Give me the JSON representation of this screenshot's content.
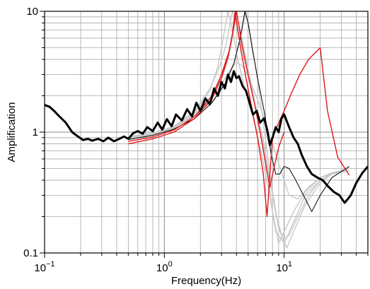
{
  "chart_data": {
    "type": "line",
    "title": "",
    "xlabel": "Frequency(Hz)",
    "ylabel": "Amplification",
    "xscale": "log",
    "yscale": "log",
    "xlim": [
      0.1,
      50
    ],
    "ylim": [
      0.1,
      10
    ],
    "grid": true,
    "x_ticks": [
      {
        "value": 0.1,
        "base": "10",
        "exp": "−1"
      },
      {
        "value": 1,
        "base": "10",
        "exp": "0"
      },
      {
        "value": 10,
        "base": "10",
        "exp": "1"
      }
    ],
    "y_ticks": [
      {
        "value": 0.1,
        "label": "0.1"
      },
      {
        "value": 1,
        "label": "1"
      },
      {
        "value": 10,
        "label": "10"
      }
    ],
    "colors": {
      "observed": "#000000",
      "gray": "#c8c8c8",
      "red": "#e01818",
      "black_model": "#000000"
    },
    "series": [
      {
        "style": "observed",
        "x": [
          0.1,
          0.11,
          0.12,
          0.13,
          0.15,
          0.17,
          0.19,
          0.21,
          0.23,
          0.25,
          0.28,
          0.31,
          0.34,
          0.38,
          0.42,
          0.46,
          0.5,
          0.55,
          0.6,
          0.66,
          0.72,
          0.8,
          0.88,
          0.96,
          1.05,
          1.15,
          1.25,
          1.4,
          1.55,
          1.7,
          1.85,
          2.0,
          2.2,
          2.4,
          2.6,
          2.8,
          3.0,
          3.2,
          3.4,
          3.6,
          3.8,
          4.0,
          4.2,
          4.5,
          4.8,
          5.1,
          5.5,
          5.9,
          6.3,
          6.8,
          7.2,
          7.6,
          8.0,
          8.5,
          9.0,
          9.5,
          10.0,
          11.0,
          12.0,
          13.0,
          14.0,
          15.5,
          17.0,
          19.0,
          21.0,
          23.0,
          26.0,
          29.0,
          32.0,
          36.0,
          40.0,
          45.0,
          50.0
        ],
        "y": [
          1.68,
          1.62,
          1.5,
          1.38,
          1.2,
          1.0,
          0.92,
          0.86,
          0.88,
          0.85,
          0.88,
          0.84,
          0.9,
          0.84,
          0.88,
          0.92,
          0.88,
          0.98,
          1.02,
          0.97,
          1.1,
          1.02,
          1.2,
          1.05,
          1.28,
          1.12,
          1.4,
          1.25,
          1.55,
          1.35,
          1.75,
          1.5,
          1.9,
          1.7,
          2.3,
          2.0,
          2.6,
          2.3,
          3.0,
          2.6,
          3.2,
          2.8,
          2.9,
          2.4,
          2.2,
          1.8,
          1.4,
          1.5,
          1.2,
          1.3,
          1.05,
          0.78,
          0.9,
          1.1,
          1.0,
          1.3,
          1.4,
          1.1,
          0.9,
          0.8,
          0.65,
          0.52,
          0.45,
          0.42,
          0.4,
          0.36,
          0.32,
          0.3,
          0.26,
          0.3,
          0.38,
          0.46,
          0.52
        ]
      },
      {
        "style": "gray",
        "x": [
          0.5,
          0.8,
          1.2,
          1.8,
          2.5,
          3.0,
          3.4,
          3.7,
          4.0,
          4.3,
          4.7,
          5.2,
          5.8,
          6.5,
          7.2,
          8.0,
          9.0,
          10.0,
          12.0,
          15.0,
          20.0,
          25.0,
          35.0
        ],
        "y": [
          0.88,
          0.95,
          1.1,
          1.4,
          2.0,
          2.8,
          4.0,
          6.0,
          9.5,
          7.0,
          4.5,
          2.8,
          1.6,
          0.95,
          0.5,
          0.22,
          0.12,
          0.15,
          0.22,
          0.32,
          0.42,
          0.46,
          0.48
        ]
      },
      {
        "style": "gray",
        "x": [
          0.5,
          0.8,
          1.2,
          1.8,
          2.4,
          2.8,
          3.1,
          3.4,
          3.7,
          4.1,
          4.6,
          5.2,
          5.9,
          6.6,
          7.5,
          8.5,
          10.0,
          12.0,
          15.0,
          20.0,
          25.0,
          35.0
        ],
        "y": [
          0.9,
          0.97,
          1.12,
          1.45,
          2.2,
          3.5,
          6.0,
          10.0,
          7.0,
          4.0,
          2.5,
          1.6,
          1.0,
          0.6,
          0.32,
          0.15,
          0.12,
          0.18,
          0.3,
          0.4,
          0.45,
          0.48
        ]
      },
      {
        "style": "gray",
        "x": [
          0.5,
          0.8,
          1.2,
          1.8,
          2.5,
          3.2,
          3.8,
          4.3,
          4.8,
          5.3,
          5.9,
          6.5,
          7.2,
          8.0,
          9.0,
          10.5,
          12.0,
          15.0,
          20.0,
          25.0,
          35.0
        ],
        "y": [
          0.92,
          0.98,
          1.1,
          1.35,
          1.8,
          2.5,
          3.6,
          6.0,
          10.0,
          6.0,
          3.0,
          1.5,
          0.7,
          0.32,
          0.16,
          0.11,
          0.15,
          0.25,
          0.38,
          0.45,
          0.5
        ]
      },
      {
        "style": "gray",
        "x": [
          0.5,
          0.8,
          1.2,
          1.8,
          2.5,
          3.0,
          3.5,
          4.0,
          4.5,
          5.0,
          5.6,
          6.2,
          7.0,
          8.0,
          9.0,
          10.0,
          11.0,
          13.0,
          16.0,
          20.0,
          25.0,
          35.0
        ],
        "y": [
          0.87,
          0.94,
          1.08,
          1.38,
          1.9,
          2.5,
          3.2,
          3.8,
          3.5,
          2.9,
          2.2,
          1.7,
          1.2,
          0.8,
          0.55,
          0.4,
          0.3,
          0.28,
          0.35,
          0.42,
          0.46,
          0.5
        ]
      },
      {
        "style": "gray",
        "x": [
          0.5,
          0.8,
          1.2,
          1.8,
          2.4,
          2.9,
          3.3,
          3.7,
          4.2,
          4.7,
          5.3,
          6.0,
          6.8,
          7.6,
          8.6,
          9.8,
          11.0,
          13.0,
          16.0,
          20.0,
          25.0,
          35.0
        ],
        "y": [
          0.89,
          0.96,
          1.12,
          1.5,
          2.3,
          3.5,
          5.5,
          10.0,
          6.5,
          3.8,
          2.3,
          1.4,
          0.8,
          0.4,
          0.2,
          0.13,
          0.14,
          0.2,
          0.3,
          0.4,
          0.46,
          0.5
        ]
      },
      {
        "style": "red",
        "x": [
          0.5,
          0.8,
          1.2,
          1.8,
          2.5,
          3.0,
          3.4,
          3.7,
          3.9,
          4.1,
          4.4,
          4.8,
          5.3,
          6.0,
          6.7,
          7.2,
          7.6,
          8.0,
          8.5,
          9.2,
          10.0,
          11.5,
          13.5,
          16.0,
          20.0,
          23.0,
          28.0,
          35.0
        ],
        "y": [
          0.8,
          0.88,
          1.0,
          1.3,
          1.9,
          2.8,
          4.2,
          6.5,
          10.0,
          7.0,
          4.5,
          2.8,
          1.7,
          0.9,
          0.45,
          0.2,
          0.45,
          0.9,
          1.05,
          1.25,
          1.5,
          2.1,
          3.0,
          4.0,
          5.0,
          1.5,
          0.62,
          0.44
        ]
      },
      {
        "style": "red",
        "x": [
          0.5,
          0.8,
          1.2,
          1.8,
          2.5,
          3.0,
          3.5,
          3.8,
          4.0,
          4.2,
          4.5,
          5.0,
          5.6,
          6.3,
          7.0,
          7.6,
          8.2,
          9.0,
          10.0
        ],
        "y": [
          0.84,
          0.91,
          1.04,
          1.35,
          2.0,
          3.0,
          4.8,
          7.5,
          10.0,
          7.5,
          5.0,
          3.0,
          1.8,
          1.0,
          0.55,
          0.35,
          0.5,
          0.75,
          1.0
        ]
      },
      {
        "style": "black_model",
        "x": [
          0.5,
          0.8,
          1.2,
          1.8,
          2.5,
          3.2,
          3.8,
          4.3,
          4.7,
          5.0,
          5.4,
          6.0,
          6.8,
          7.3,
          7.8,
          8.5,
          9.2,
          10.0,
          11.0,
          12.5,
          14.5,
          17.0,
          20.0,
          25.0,
          35.0
        ],
        "y": [
          0.87,
          0.94,
          1.06,
          1.3,
          1.75,
          2.5,
          3.7,
          6.0,
          10.0,
          8.0,
          5.0,
          2.8,
          1.5,
          1.0,
          0.65,
          0.45,
          0.45,
          0.52,
          0.5,
          0.4,
          0.3,
          0.22,
          0.3,
          0.42,
          0.52
        ]
      }
    ]
  }
}
